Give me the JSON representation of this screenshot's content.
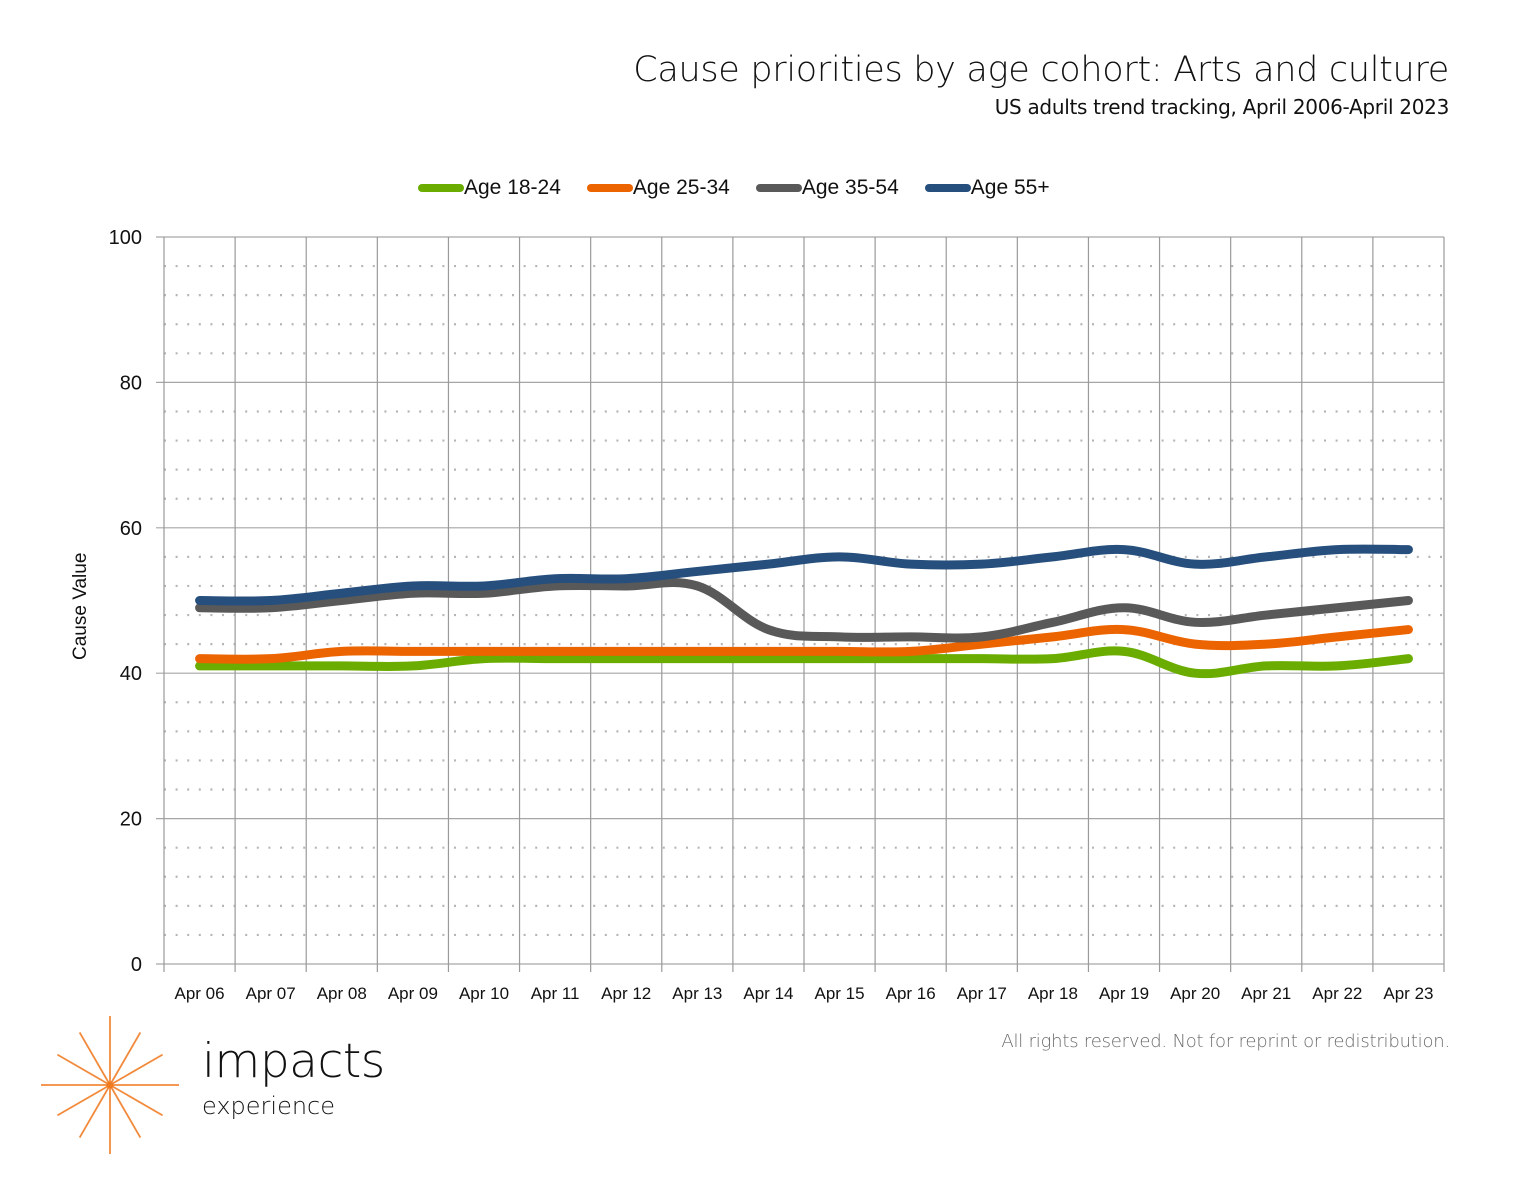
{
  "header": {
    "title": "Cause priorities by age cohort: Arts and culture",
    "subtitle": "US adults trend tracking, April 2006-April 2023"
  },
  "footer": {
    "copyright": "All rights reserved. Not for reprint or redistribution."
  },
  "logo": {
    "icon": "starburst-icon",
    "word": "impacts",
    "sub": "experience",
    "color": "#f28a3c"
  },
  "chart_data": {
    "type": "line",
    "title": "Cause priorities by age cohort: Arts and culture",
    "subtitle": "US adults trend tracking, April 2006-April 2023",
    "xlabel": "",
    "ylabel": "Cause Value",
    "ylim": [
      0,
      100
    ],
    "yticks": [
      0,
      20,
      40,
      60,
      80,
      100
    ],
    "minor_y_step": 4,
    "grid": true,
    "smoothed": true,
    "legend_position": "top-center",
    "categories": [
      "Apr 06",
      "Apr 07",
      "Apr 08",
      "Apr 09",
      "Apr 10",
      "Apr 11",
      "Apr 12",
      "Apr 13",
      "Apr 14",
      "Apr 15",
      "Apr 16",
      "Apr 17",
      "Apr 18",
      "Apr 19",
      "Apr 20",
      "Apr 21",
      "Apr 22",
      "Apr 23"
    ],
    "series": [
      {
        "name": "Age 18-24",
        "color": "#6aad00",
        "values": [
          41,
          41,
          41,
          41,
          42,
          42,
          42,
          42,
          42,
          42,
          42,
          42,
          42,
          43,
          40,
          41,
          41,
          42
        ]
      },
      {
        "name": "Age 25-34",
        "color": "#ec6400",
        "values": [
          42,
          42,
          43,
          43,
          43,
          43,
          43,
          43,
          43,
          43,
          43,
          44,
          45,
          46,
          44,
          44,
          45,
          46
        ]
      },
      {
        "name": "Age 35-54",
        "color": "#595959",
        "values": [
          49,
          49,
          50,
          51,
          51,
          52,
          52,
          52,
          46,
          45,
          45,
          45,
          47,
          49,
          47,
          48,
          49,
          50
        ]
      },
      {
        "name": "Age 55+",
        "color": "#264f7d",
        "values": [
          50,
          50,
          51,
          52,
          52,
          53,
          53,
          54,
          55,
          56,
          55,
          55,
          56,
          57,
          55,
          56,
          57,
          57
        ]
      }
    ]
  }
}
